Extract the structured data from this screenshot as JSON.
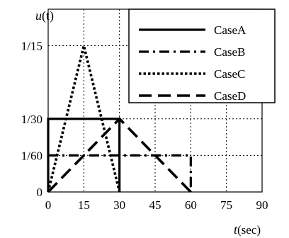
{
  "chart_data": {
    "type": "line",
    "ylabel": "u(t)",
    "xlabel": "t(sec)",
    "xlabel_var": "t",
    "xlabel_unit": "(sec)",
    "ylabel_var": "u",
    "ylabel_arg": "(t)",
    "xlim": [
      0,
      90
    ],
    "ylim": [
      0,
      0.0833
    ],
    "grid": true,
    "legend_position": "top-right",
    "x_ticks": [
      {
        "value": 0,
        "label": "0"
      },
      {
        "value": 15,
        "label": "15"
      },
      {
        "value": 30,
        "label": "30"
      },
      {
        "value": 45,
        "label": "45"
      },
      {
        "value": 60,
        "label": "60"
      },
      {
        "value": 75,
        "label": "75"
      },
      {
        "value": 90,
        "label": "90"
      }
    ],
    "y_ticks": [
      {
        "value": 0,
        "label": "0"
      },
      {
        "value": 0.016667,
        "label": "1/60"
      },
      {
        "value": 0.033333,
        "label": "1/30"
      },
      {
        "value": 0.066667,
        "label": "1/15"
      }
    ],
    "series": [
      {
        "name": "CaseA",
        "style": "solid",
        "points": [
          [
            0,
            0
          ],
          [
            0,
            0.033333
          ],
          [
            30,
            0.033333
          ],
          [
            30,
            0
          ]
        ]
      },
      {
        "name": "CaseB",
        "style": "dashdot",
        "points": [
          [
            0,
            0.016667
          ],
          [
            60,
            0.016667
          ],
          [
            60,
            0
          ]
        ]
      },
      {
        "name": "CaseC",
        "style": "dotted",
        "points": [
          [
            0,
            0
          ],
          [
            15,
            0.066667
          ],
          [
            30,
            0
          ]
        ]
      },
      {
        "name": "CaseD",
        "style": "longdash",
        "points": [
          [
            0,
            0
          ],
          [
            30,
            0.033333
          ],
          [
            60,
            0
          ]
        ]
      }
    ]
  }
}
